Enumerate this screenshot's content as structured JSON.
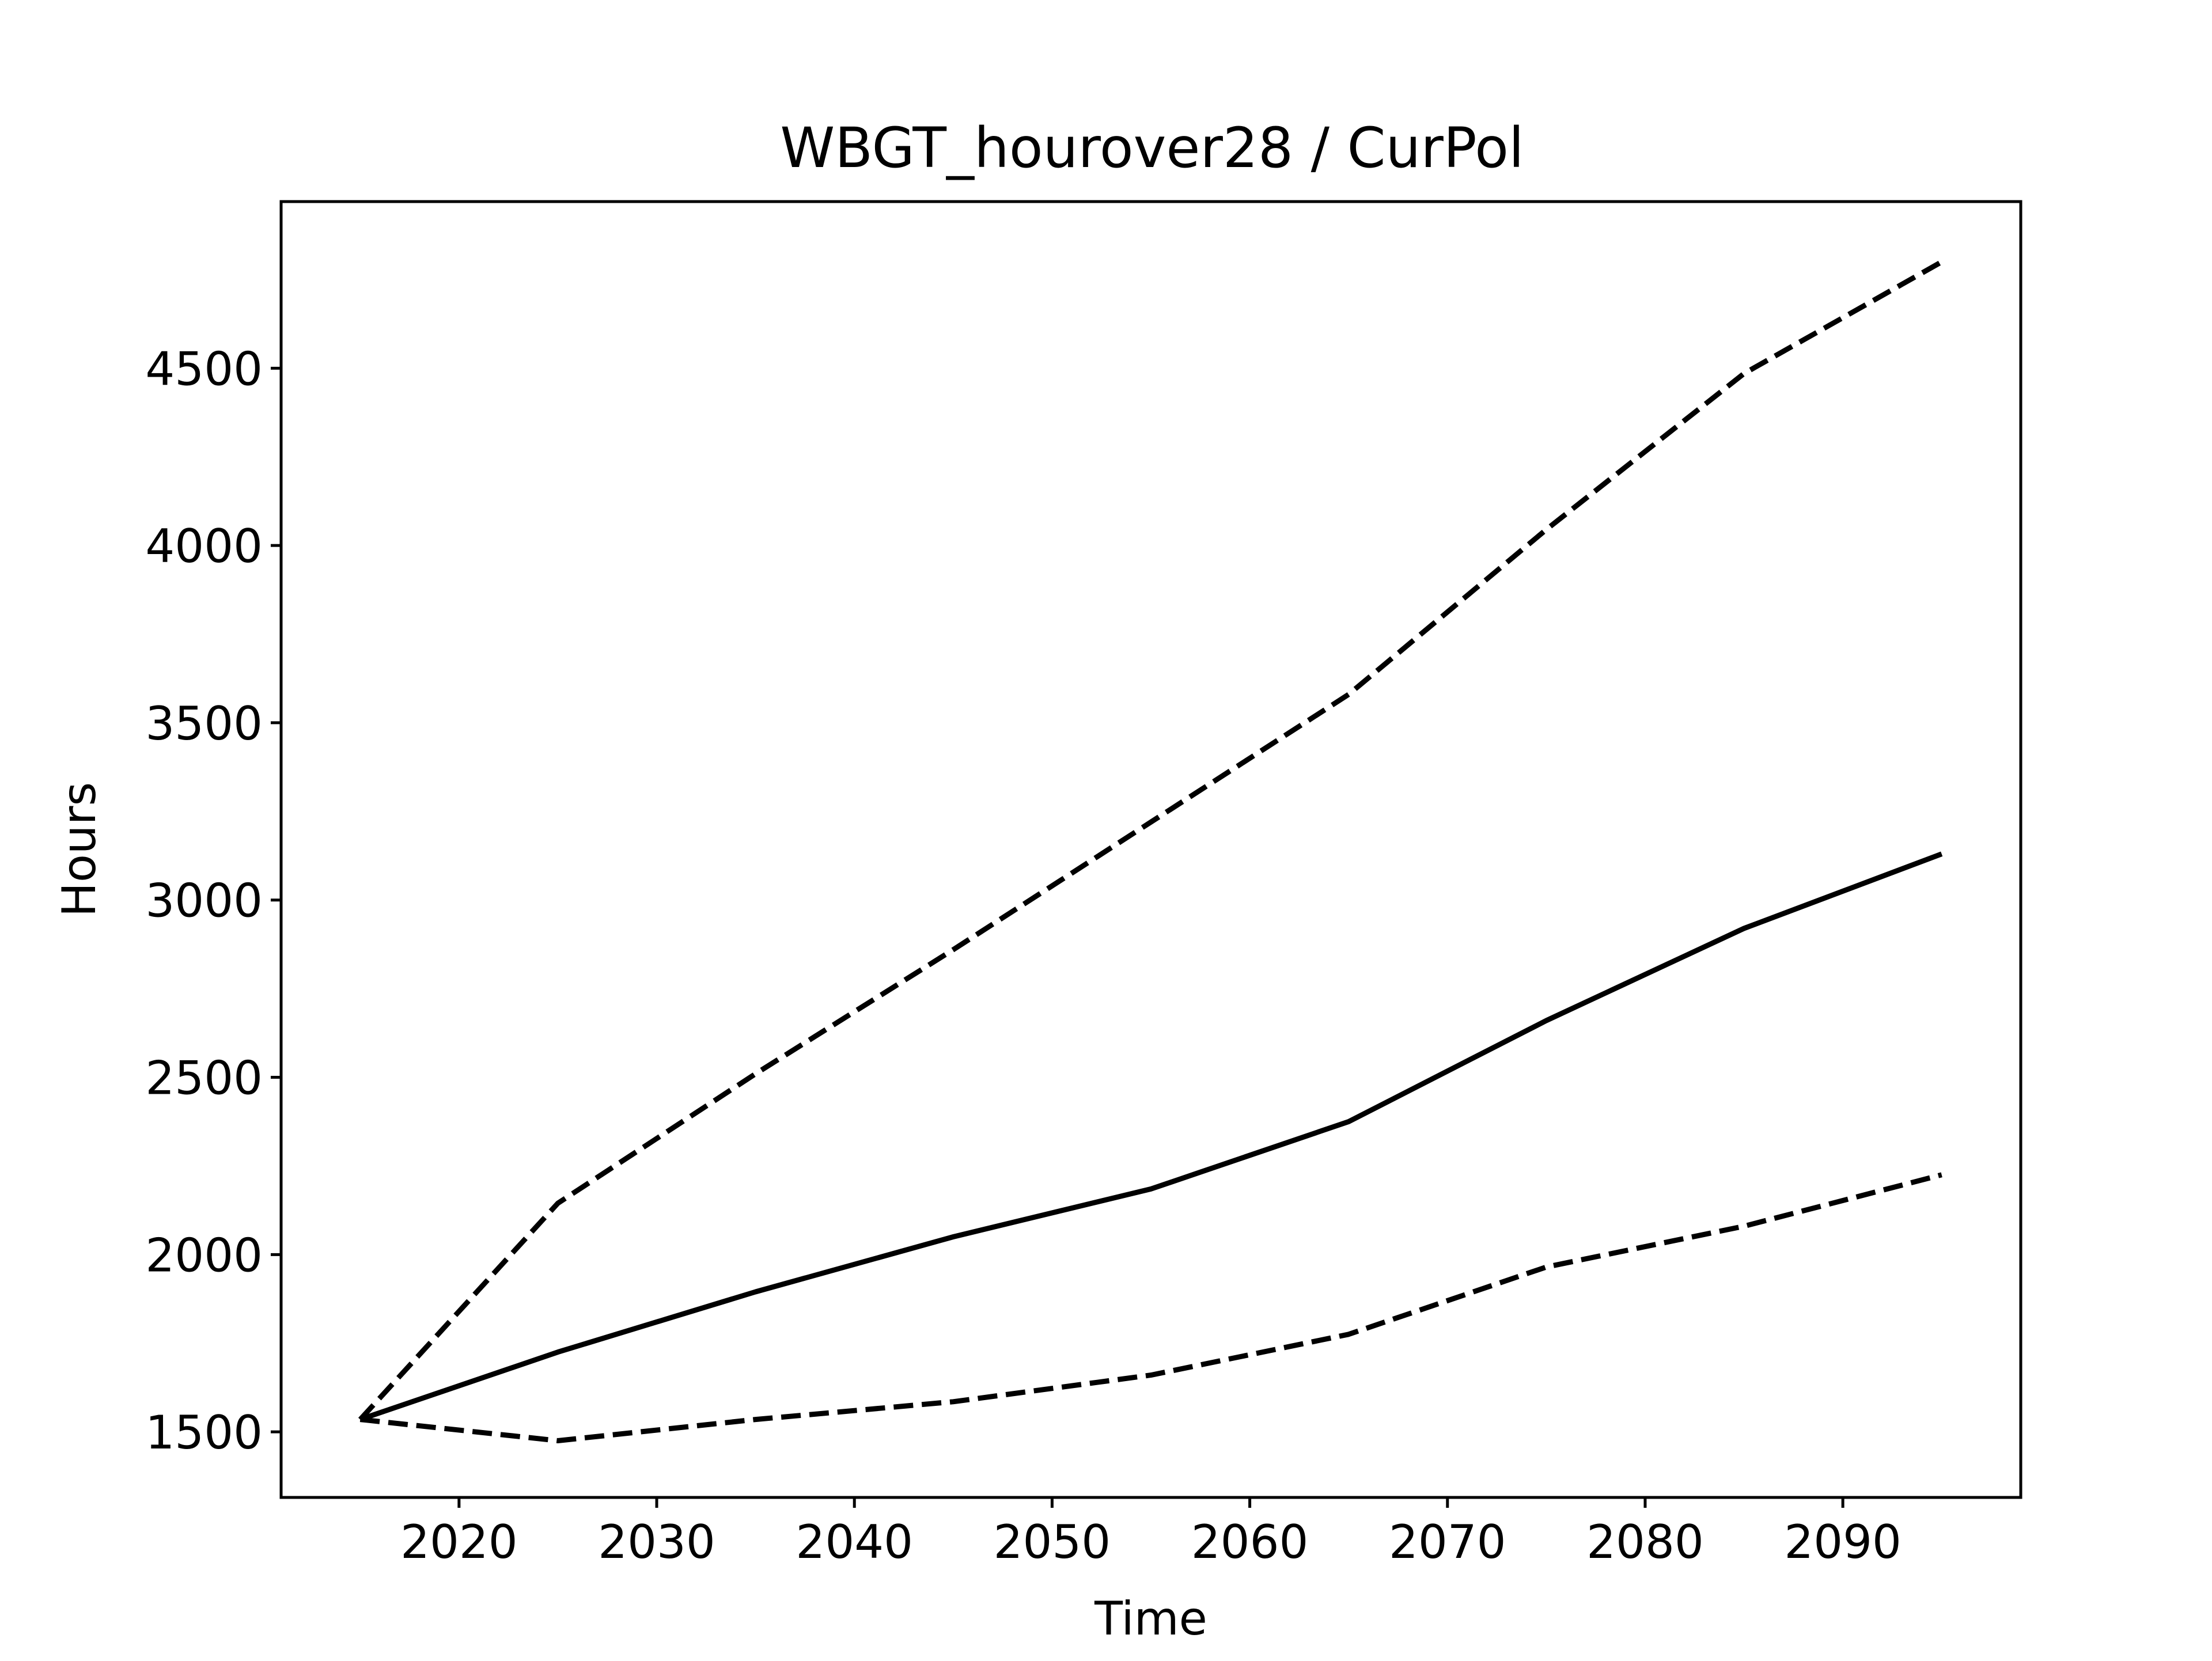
{
  "chart_data": {
    "type": "line",
    "title": "WBGT_hourover28 / CurPol",
    "xlabel": "Time",
    "ylabel": "Hours",
    "x": [
      2015,
      2025,
      2035,
      2045,
      2055,
      2065,
      2075,
      2085,
      2095
    ],
    "series": [
      {
        "style": "solid",
        "values": [
          1535,
          1725,
          1895,
          2050,
          2185,
          2375,
          2660,
          2920,
          3130
        ]
      },
      {
        "style": "dashed",
        "values": [
          1535,
          2145,
          2510,
          2860,
          3220,
          3580,
          4045,
          4485,
          4800
        ]
      },
      {
        "style": "dashed",
        "values": [
          1535,
          1475,
          1535,
          1585,
          1660,
          1775,
          1965,
          2080,
          2225
        ]
      }
    ],
    "xlim": [
      2011,
      2099
    ],
    "ylim": [
      1315,
      4970
    ],
    "xticks": [
      2020,
      2030,
      2040,
      2050,
      2060,
      2070,
      2080,
      2090
    ],
    "yticks": [
      1500,
      2000,
      2500,
      3000,
      3500,
      4000,
      4500
    ],
    "grid": false,
    "legend": "none",
    "colors": {
      "line": "#000000",
      "axes": "#000000",
      "background": "#ffffff"
    }
  }
}
